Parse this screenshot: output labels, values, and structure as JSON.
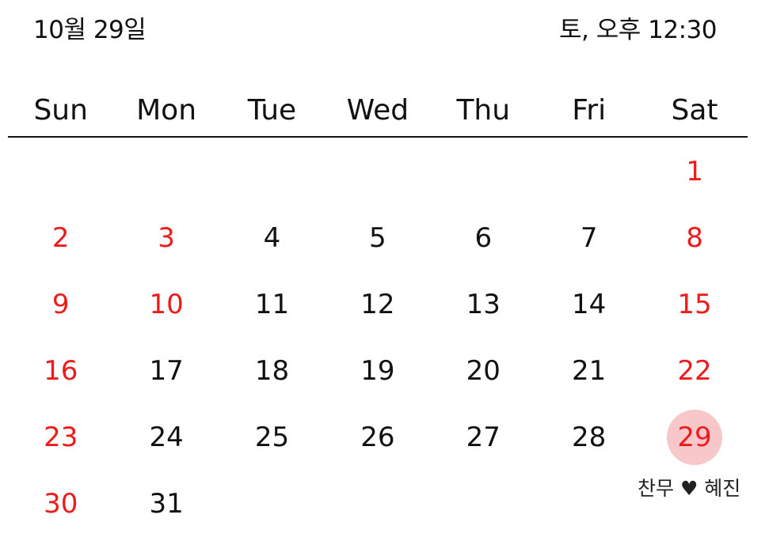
{
  "header": {
    "date": "10월 29일",
    "time": "토, 오후 12:30"
  },
  "weekdays": [
    "Sun",
    "Mon",
    "Tue",
    "Wed",
    "Thu",
    "Fri",
    "Sat"
  ],
  "weeks": [
    [
      "",
      "",
      "",
      "",
      "",
      "",
      "1"
    ],
    [
      "2",
      "3",
      "4",
      "5",
      "6",
      "7",
      "8"
    ],
    [
      "9",
      "10",
      "11",
      "12",
      "13",
      "14",
      "15"
    ],
    [
      "16",
      "17",
      "18",
      "19",
      "20",
      "21",
      "22"
    ],
    [
      "23",
      "24",
      "25",
      "26",
      "27",
      "28",
      "29"
    ],
    [
      "30",
      "31",
      "",
      "",
      "",
      "",
      ""
    ]
  ],
  "event": {
    "label": "찬무 ♥ 혜진"
  },
  "colors": {
    "holiday": "#ee1b1b",
    "today_highlight": "#f8c7c9"
  }
}
